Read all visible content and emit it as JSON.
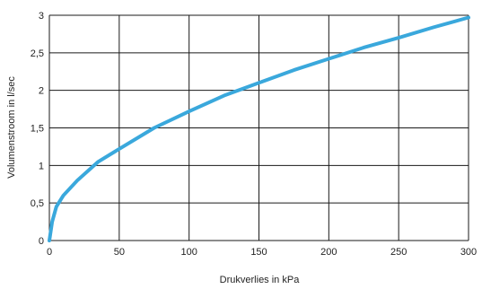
{
  "chart_data": {
    "type": "line",
    "title": "",
    "xlabel": "Drukverlies in kPa",
    "ylabel": "Volumenstroom in l/sec",
    "xlim": [
      0,
      300
    ],
    "ylim": [
      0,
      3
    ],
    "grid": true,
    "xticks": [
      0,
      50,
      100,
      150,
      200,
      250,
      300
    ],
    "yticks": [
      0,
      0.5,
      1,
      1.5,
      2,
      2.5,
      3
    ],
    "xtick_labels": [
      "0",
      "50",
      "100",
      "150",
      "200",
      "250",
      "300"
    ],
    "ytick_labels": [
      "0",
      "0,5",
      "1",
      "1,5",
      "2",
      "2,5",
      "3"
    ],
    "series": [
      {
        "color": "#3aa8dc",
        "x": [
          0,
          2,
          5,
          10,
          20,
          35,
          50,
          75,
          100,
          125,
          150,
          175,
          200,
          225,
          250,
          275,
          300
        ],
        "y": [
          0,
          0.25,
          0.45,
          0.6,
          0.8,
          1.05,
          1.22,
          1.5,
          1.72,
          1.93,
          2.1,
          2.27,
          2.42,
          2.57,
          2.7,
          2.84,
          2.97
        ]
      }
    ]
  }
}
